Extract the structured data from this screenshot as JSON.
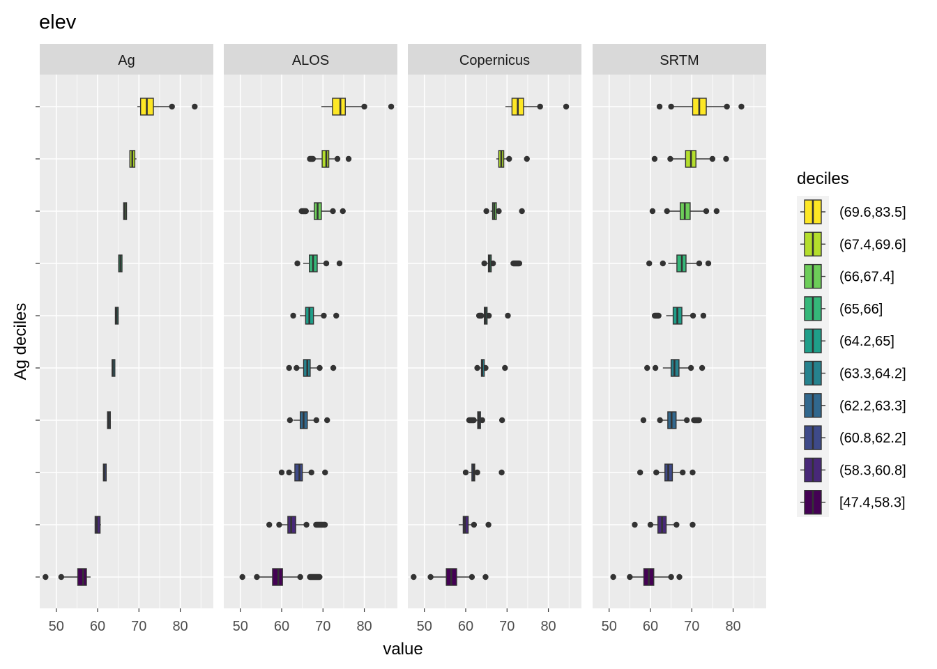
{
  "chart_data": {
    "type": "boxplot",
    "title": "elev",
    "xlabel": "value",
    "ylabel": "Ag deciles",
    "xlim": [
      46,
      88
    ],
    "x_ticks": [
      50,
      60,
      70,
      80
    ],
    "facets": [
      "Ag",
      "ALOS",
      "Copernicus",
      "SRTM"
    ],
    "legend": {
      "title": "deciles",
      "position": "right",
      "entries": [
        "(69.6,83.5]",
        "(67.4,69.6]",
        "(66,67.4]",
        "(65,66]",
        "(64.2,65]",
        "(63.3,64.2]",
        "(62.2,63.3]",
        "(60.8,62.2]",
        "(58.3,60.8]",
        "[47.4,58.3]"
      ]
    },
    "deciles": [
      "[47.4,58.3]",
      "(58.3,60.8]",
      "(60.8,62.2]",
      "(62.2,63.3]",
      "(63.3,64.2]",
      "(64.2,65]",
      "(65,66]",
      "(66,67.4]",
      "(67.4,69.6]",
      "(69.6,83.5]"
    ],
    "colors": [
      "#440154",
      "#482878",
      "#3E4A89",
      "#31688E",
      "#26828E",
      "#1F9E89",
      "#35B779",
      "#6DCD59",
      "#B4DE2C",
      "#FDE725"
    ],
    "series": [
      {
        "name": "Ag",
        "boxes": [
          {
            "decile": "[47.4,58.3]",
            "whisker_low": 51.2,
            "q1": 55.2,
            "median": 56.5,
            "q3": 57.3,
            "whisker_high": 58.3,
            "outliers_low": [
              47.4,
              51.2
            ],
            "outliers_high": []
          },
          {
            "decile": "(58.3,60.8]",
            "whisker_low": 59.3,
            "q1": 59.4,
            "median": 59.8,
            "q3": 60.6,
            "whisker_high": 60.8,
            "outliers_low": [],
            "outliers_high": []
          },
          {
            "decile": "(60.8,62.2]",
            "whisker_low": 61.4,
            "q1": 61.4,
            "median": 61.6,
            "q3": 62.0,
            "whisker_high": 62.2,
            "outliers_low": [],
            "outliers_high": []
          },
          {
            "decile": "(62.2,63.3]",
            "whisker_low": 62.4,
            "q1": 62.4,
            "median": 62.7,
            "q3": 63.0,
            "whisker_high": 63.1,
            "outliers_low": [],
            "outliers_high": []
          },
          {
            "decile": "(63.3,64.2]",
            "whisker_low": 63.5,
            "q1": 63.5,
            "median": 63.7,
            "q3": 64.0,
            "whisker_high": 64.1,
            "outliers_low": [],
            "outliers_high": []
          },
          {
            "decile": "(64.2,65]",
            "whisker_low": 64.3,
            "q1": 64.3,
            "median": 64.6,
            "q3": 64.9,
            "whisker_high": 65.0,
            "outliers_low": [],
            "outliers_high": []
          },
          {
            "decile": "(65,66]",
            "whisker_low": 65.1,
            "q1": 65.1,
            "median": 65.5,
            "q3": 65.9,
            "whisker_high": 66.0,
            "outliers_low": [],
            "outliers_high": []
          },
          {
            "decile": "(66,67.4]",
            "whisker_low": 66.3,
            "q1": 66.3,
            "median": 66.6,
            "q3": 67.0,
            "whisker_high": 67.1,
            "outliers_low": [],
            "outliers_high": []
          },
          {
            "decile": "(67.4,69.6]",
            "whisker_low": 67.8,
            "q1": 67.8,
            "median": 68.4,
            "q3": 69.0,
            "whisker_high": 69.4,
            "outliers_low": [],
            "outliers_high": []
          },
          {
            "decile": "(69.6,83.5]",
            "whisker_low": 69.6,
            "q1": 70.4,
            "median": 71.9,
            "q3": 73.5,
            "whisker_high": 78.0,
            "outliers_low": [],
            "outliers_high": [
              78.0,
              83.5
            ]
          }
        ]
      },
      {
        "name": "ALOS",
        "boxes": [
          {
            "decile": "[47.4,58.3]",
            "whisker_low": 54.0,
            "q1": 57.8,
            "median": 59.2,
            "q3": 60.2,
            "whisker_high": 64.0,
            "outliers_low": [
              50.5,
              54.0
            ],
            "outliers_high": [
              64.5,
              66.8,
              67.8,
              69.2
            ]
          },
          {
            "decile": "(58.3,60.8]",
            "whisker_low": 59.4,
            "q1": 61.5,
            "median": 62.3,
            "q3": 63.4,
            "whisker_high": 66.0,
            "outliers_low": [
              57.0,
              59.4
            ],
            "outliers_high": [
              66.0,
              68.3,
              69.4,
              70.5
            ]
          },
          {
            "decile": "(60.8,62.2]",
            "whisker_low": 62.2,
            "q1": 63.2,
            "median": 64.3,
            "q3": 65.0,
            "whisker_high": 67.2,
            "outliers_low": [
              60.0,
              61.8
            ],
            "outliers_high": [
              67.2,
              70.5
            ]
          },
          {
            "decile": "(62.2,63.3]",
            "whisker_low": 62.8,
            "q1": 64.5,
            "median": 65.3,
            "q3": 66.2,
            "whisker_high": 68.4,
            "outliers_low": [
              62.0
            ],
            "outliers_high": [
              68.4,
              71.0
            ]
          },
          {
            "decile": "(63.3,64.2]",
            "whisker_low": 63.8,
            "q1": 65.3,
            "median": 66.2,
            "q3": 66.9,
            "whisker_high": 69.2,
            "outliers_low": [
              61.8,
              63.6
            ],
            "outliers_high": [
              69.2,
              72.5
            ]
          },
          {
            "decile": "(64.2,65]",
            "whisker_low": 64.4,
            "q1": 65.8,
            "median": 66.7,
            "q3": 67.7,
            "whisker_high": 70.2,
            "outliers_low": [
              62.8
            ],
            "outliers_high": [
              70.2,
              73.2
            ]
          },
          {
            "decile": "(65,66]",
            "whisker_low": 65.2,
            "q1": 66.7,
            "median": 67.6,
            "q3": 68.6,
            "whisker_high": 70.8,
            "outliers_low": [
              63.8
            ],
            "outliers_high": [
              70.8,
              74.0
            ]
          },
          {
            "decile": "(66,67.4]",
            "whisker_low": 66.8,
            "q1": 67.9,
            "median": 68.7,
            "q3": 69.6,
            "whisker_high": 72.4,
            "outliers_low": [
              64.8,
              65.9
            ],
            "outliers_high": [
              72.4,
              74.8
            ]
          },
          {
            "decile": "(67.4,69.6]",
            "whisker_low": 68.2,
            "q1": 69.8,
            "median": 70.8,
            "q3": 71.4,
            "whisker_high": 73.5,
            "outliers_low": [
              66.8,
              67.6
            ],
            "outliers_high": [
              73.5,
              76.2
            ]
          },
          {
            "decile": "(69.6,83.5]",
            "whisker_low": 69.6,
            "q1": 72.3,
            "median": 74.2,
            "q3": 75.4,
            "whisker_high": 80.0,
            "outliers_low": [],
            "outliers_high": [
              80.0,
              86.5
            ]
          }
        ]
      },
      {
        "name": "Copernicus",
        "boxes": [
          {
            "decile": "[47.4,58.3]",
            "whisker_low": 51.5,
            "q1": 55.3,
            "median": 56.5,
            "q3": 57.8,
            "whisker_high": 61.5,
            "outliers_low": [
              47.4,
              51.5
            ],
            "outliers_high": [
              61.5,
              64.8
            ]
          },
          {
            "decile": "(58.3,60.8]",
            "whisker_low": 58.3,
            "q1": 59.4,
            "median": 59.8,
            "q3": 60.6,
            "whisker_high": 62.0,
            "outliers_low": [],
            "outliers_high": [
              62.0,
              65.5
            ]
          },
          {
            "decile": "(60.8,62.2]",
            "whisker_low": 60.8,
            "q1": 61.5,
            "median": 61.9,
            "q3": 62.1,
            "whisker_high": 62.8,
            "outliers_low": [
              60.0
            ],
            "outliers_high": [
              62.8,
              68.7
            ]
          },
          {
            "decile": "(62.2,63.3]",
            "whisker_low": 62.2,
            "q1": 62.9,
            "median": 63.2,
            "q3": 63.3,
            "whisker_high": 64.0,
            "outliers_low": [
              60.8,
              62.0
            ],
            "outliers_high": [
              64.0,
              68.8
            ]
          },
          {
            "decile": "(63.3,64.2]",
            "whisker_low": 63.3,
            "q1": 63.8,
            "median": 64.0,
            "q3": 64.2,
            "whisker_high": 64.8,
            "outliers_low": [
              62.8
            ],
            "outliers_high": [
              64.8,
              69.5
            ]
          },
          {
            "decile": "(64.2,65]",
            "whisker_low": 64.2,
            "q1": 64.5,
            "median": 64.8,
            "q3": 65.0,
            "whisker_high": 65.6,
            "outliers_low": [
              63.2,
              63.8
            ],
            "outliers_high": [
              65.6,
              70.2
            ]
          },
          {
            "decile": "(65,66]",
            "whisker_low": 65.0,
            "q1": 65.5,
            "median": 65.8,
            "q3": 66.0,
            "whisker_high": 66.6,
            "outliers_low": [
              64.5
            ],
            "outliers_high": [
              66.6,
              71.5,
              73.0
            ]
          },
          {
            "decile": "(66,67.4]",
            "whisker_low": 66.0,
            "q1": 66.5,
            "median": 66.9,
            "q3": 67.4,
            "whisker_high": 68.0,
            "outliers_low": [
              65.0
            ],
            "outliers_high": [
              68.0,
              73.6
            ]
          },
          {
            "decile": "(67.4,69.6]",
            "whisker_low": 67.4,
            "q1": 68.0,
            "median": 68.6,
            "q3": 69.2,
            "whisker_high": 70.5,
            "outliers_low": [],
            "outliers_high": [
              70.5,
              74.8
            ]
          },
          {
            "decile": "(69.6,83.5]",
            "whisker_low": 69.6,
            "q1": 71.2,
            "median": 72.6,
            "q3": 74.0,
            "whisker_high": 78.0,
            "outliers_low": [],
            "outliers_high": [
              78.0,
              84.3
            ]
          }
        ]
      },
      {
        "name": "SRTM",
        "boxes": [
          {
            "decile": "[47.4,58.3]",
            "whisker_low": 55.0,
            "q1": 58.4,
            "median": 59.6,
            "q3": 60.8,
            "whisker_high": 65.0,
            "outliers_low": [
              51.0,
              55.0
            ],
            "outliers_high": [
              65.0,
              67.0
            ]
          },
          {
            "decile": "(58.3,60.8]",
            "whisker_low": 60.0,
            "q1": 61.8,
            "median": 62.8,
            "q3": 63.8,
            "whisker_high": 66.3,
            "outliers_low": [
              56.2,
              60.0
            ],
            "outliers_high": [
              66.3,
              70.2
            ]
          },
          {
            "decile": "(60.8,62.2]",
            "whisker_low": 61.4,
            "q1": 63.5,
            "median": 64.3,
            "q3": 65.3,
            "whisker_high": 67.8,
            "outliers_low": [
              57.5,
              61.4
            ],
            "outliers_high": [
              67.8,
              70.2
            ]
          },
          {
            "decile": "(62.2,63.3]",
            "whisker_low": 62.3,
            "q1": 64.2,
            "median": 65.1,
            "q3": 66.2,
            "whisker_high": 68.8,
            "outliers_low": [
              58.3,
              62.3
            ],
            "outliers_high": [
              68.8,
              70.5,
              71.8
            ]
          },
          {
            "decile": "(63.3,64.2]",
            "whisker_low": 63.0,
            "q1": 65.0,
            "median": 65.8,
            "q3": 66.9,
            "whisker_high": 69.8,
            "outliers_low": [
              59.2,
              61.2
            ],
            "outliers_high": [
              69.8,
              72.5
            ]
          },
          {
            "decile": "(64.2,65]",
            "whisker_low": 63.8,
            "q1": 65.5,
            "median": 66.5,
            "q3": 67.6,
            "whisker_high": 70.3,
            "outliers_low": [
              61.0,
              62.0
            ],
            "outliers_high": [
              70.3,
              72.8
            ]
          },
          {
            "decile": "(65,66]",
            "whisker_low": 64.3,
            "q1": 66.4,
            "median": 67.6,
            "q3": 68.6,
            "whisker_high": 71.8,
            "outliers_low": [
              59.7,
              63.0
            ],
            "outliers_high": [
              71.8,
              74.0
            ]
          },
          {
            "decile": "(66,67.4]",
            "whisker_low": 64.5,
            "q1": 67.2,
            "median": 68.3,
            "q3": 69.6,
            "whisker_high": 73.0,
            "outliers_low": [
              60.5,
              64.0
            ],
            "outliers_high": [
              73.5,
              76.0
            ]
          },
          {
            "decile": "(67.4,69.6]",
            "whisker_low": 65.0,
            "q1": 68.5,
            "median": 69.8,
            "q3": 71.0,
            "whisker_high": 75.0,
            "outliers_low": [
              61.0,
              64.8
            ],
            "outliers_high": [
              75.0,
              78.3
            ]
          },
          {
            "decile": "(69.6,83.5]",
            "whisker_low": 65.5,
            "q1": 70.2,
            "median": 71.8,
            "q3": 73.5,
            "whisker_high": 78.5,
            "outliers_low": [
              62.2,
              65.0
            ],
            "outliers_high": [
              78.5,
              82.0
            ]
          }
        ]
      }
    ]
  }
}
